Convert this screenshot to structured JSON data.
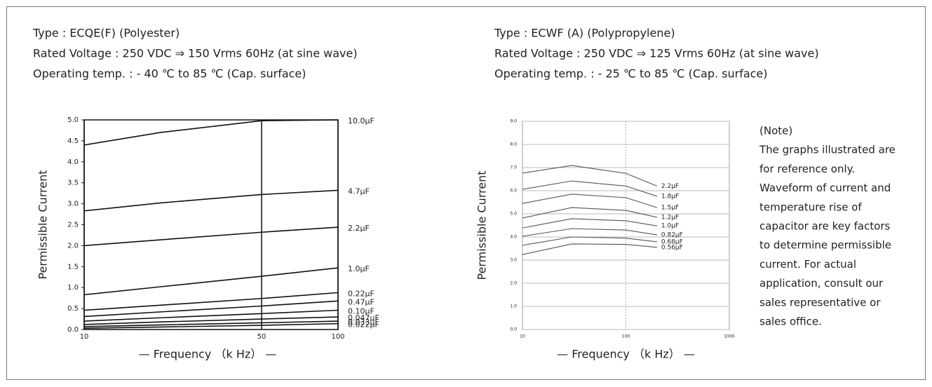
{
  "specs": [
    [
      "Type : ECQE(F) (Polyester)",
      "Rated Voltage : 250 VDC ⇒ 150 Vrms 60Hz (at sine wave)",
      "Operating temp. : - 40 ℃ to 85 ℃ (Cap. surface)"
    ],
    [
      "Type : ECWF (A) (Polypropylene)",
      "Rated Voltage : 250 VDC ⇒ 125 Vrms 60Hz (at sine wave)",
      "Operating temp. : - 25 ℃ to 85 ℃ (Cap. surface)"
    ]
  ],
  "note": [
    "(Note)",
    "The graphs illustrated are",
    "for reference only.",
    "Waveform of current and",
    "temperature rise of",
    "capacitor are key factors",
    "to determine permissible",
    "current. For actual",
    "application, consult our",
    "sales representative or",
    "sales office."
  ],
  "chart_data": [
    {
      "type": "line",
      "x_label": "— Frequency （k Hz） —",
      "y_label": "Permissible Current",
      "xscale": "log",
      "grid": true,
      "x": [
        10,
        20,
        50,
        100
      ],
      "xlim": [
        10,
        100
      ],
      "xticks": [
        10,
        50,
        100
      ],
      "ylim": [
        0,
        5
      ],
      "yticks": [
        {
          "value": 0,
          "label": "0.0"
        },
        0.5,
        1.5,
        {
          "value": 1,
          "label": "1.0"
        },
        {
          "value": 2,
          "label": "2.0"
        },
        2.5,
        {
          "value": 3,
          "label": "3.0"
        },
        3.5,
        {
          "value": 4,
          "label": "4.0"
        },
        4.5,
        {
          "value": 5,
          "label": "5.0"
        }
      ],
      "series": [
        {
          "name": "10.0μF",
          "color": "#111111",
          "values": [
            4.4,
            4.7,
            4.98,
            5.0
          ]
        },
        {
          "name": "4.7μF",
          "color": "#111111",
          "values": [
            2.83,
            3.02,
            3.22,
            3.32
          ]
        },
        {
          "name": "2.2μF",
          "color": "#111111",
          "values": [
            2.0,
            2.14,
            2.32,
            2.44
          ]
        },
        {
          "name": "1.0μF",
          "color": "#111111",
          "values": [
            0.83,
            1.02,
            1.27,
            1.47
          ]
        },
        {
          "name": "0.22μF",
          "color": "#111111",
          "values": [
            0.46,
            0.58,
            0.74,
            0.88
          ]
        },
        {
          "name": "0.47μF",
          "color": "#111111",
          "values": [
            0.31,
            0.42,
            0.56,
            0.68
          ]
        },
        {
          "name": "0.10μF",
          "color": "#111111",
          "values": [
            0.2,
            0.28,
            0.38,
            0.46
          ]
        },
        {
          "name": "0.047μF",
          "color": "#111111",
          "values": [
            0.12,
            0.18,
            0.25,
            0.3
          ]
        },
        {
          "name": "0.033μF",
          "color": "#111111",
          "values": [
            0.07,
            0.11,
            0.16,
            0.2
          ]
        },
        {
          "name": "0.022μF",
          "color": "#111111",
          "values": [
            0.03,
            0.06,
            0.1,
            0.14
          ]
        }
      ]
    },
    {
      "type": "line",
      "x_label": "— Frequency （k Hz） —",
      "y_label": "Permissible Current",
      "xscale": "log",
      "grid": true,
      "x": [
        10,
        30,
        100,
        200
      ],
      "xlim": [
        10,
        1000
      ],
      "xticks": [
        10,
        100,
        1000
      ],
      "ylim": [
        0,
        9
      ],
      "yticks": [
        {
          "value": 0,
          "label": "0.0"
        },
        {
          "value": 1,
          "label": "1.0"
        },
        {
          "value": 2,
          "label": "2.0"
        },
        {
          "value": 3,
          "label": "3.0"
        },
        {
          "value": 4,
          "label": "4.0"
        },
        {
          "value": 5,
          "label": "5.0"
        },
        {
          "value": 6,
          "label": "6.0"
        },
        {
          "value": 7,
          "label": "7.0"
        },
        {
          "value": 8,
          "label": "8.0"
        },
        {
          "value": 9,
          "label": "9.0"
        }
      ],
      "series": [
        {
          "name": "2.2μF",
          "color": "#555555",
          "values": [
            6.76,
            7.09,
            6.75,
            6.2
          ]
        },
        {
          "name": "1.8μF",
          "color": "#555555",
          "values": [
            6.06,
            6.42,
            6.2,
            5.76
          ]
        },
        {
          "name": "1.5μF",
          "color": "#555555",
          "values": [
            5.45,
            5.85,
            5.7,
            5.27
          ]
        },
        {
          "name": "1.2μF",
          "color": "#555555",
          "values": [
            4.82,
            5.27,
            5.15,
            4.85
          ]
        },
        {
          "name": "1.0μF",
          "color": "#555555",
          "values": [
            4.39,
            4.79,
            4.7,
            4.48
          ]
        },
        {
          "name": "0.82μF",
          "color": "#555555",
          "values": [
            4.03,
            4.36,
            4.3,
            4.09
          ]
        },
        {
          "name": "0.68μF",
          "color": "#555555",
          "values": [
            3.64,
            4.0,
            3.95,
            3.79
          ]
        },
        {
          "name": "0.56μF",
          "color": "#555555",
          "values": [
            3.24,
            3.7,
            3.68,
            3.55
          ]
        }
      ]
    }
  ]
}
